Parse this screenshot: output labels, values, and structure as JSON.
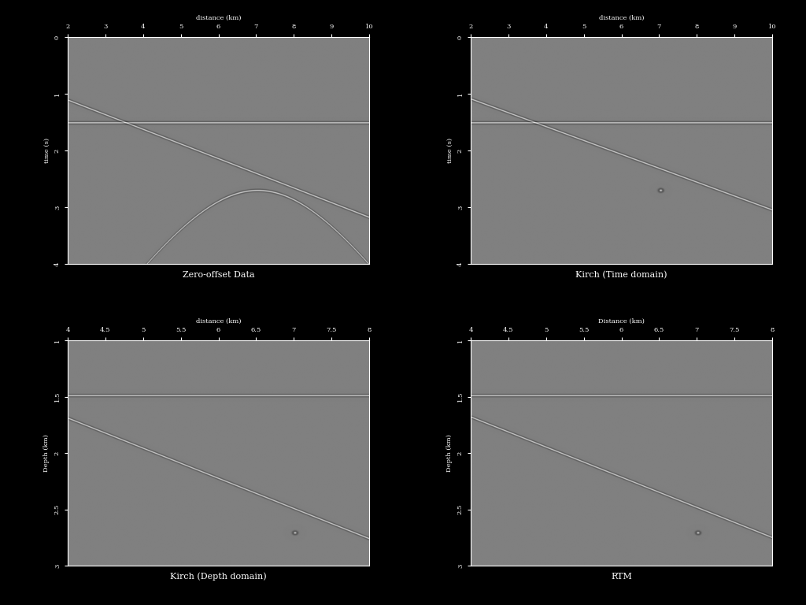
{
  "chart_data": [
    {
      "type": "image",
      "title": "Zero-offset Data",
      "xlabel": "distance (km)",
      "ylabel": "time (s)",
      "xlim": [
        2,
        10
      ],
      "xticks": [
        2,
        3,
        4,
        5,
        6,
        7,
        8,
        9,
        10
      ],
      "ylim": [
        4,
        0
      ],
      "yticks": [
        0,
        1,
        2,
        3,
        4
      ],
      "events": [
        {
          "type": "line",
          "x": [
            2,
            10
          ],
          "y": [
            1.52,
            1.52
          ]
        },
        {
          "type": "line",
          "x": [
            2,
            10
          ],
          "y": [
            1.12,
            3.18
          ]
        },
        {
          "type": "hyperbola",
          "x0": 7.05,
          "t0": 2.71,
          "velocity": 2.0
        }
      ]
    },
    {
      "type": "image",
      "title": "Kirch (Time domain)",
      "xlabel": "distance (km)",
      "ylabel": "time (s)",
      "xlim": [
        2,
        10
      ],
      "xticks": [
        2,
        3,
        4,
        5,
        6,
        7,
        8,
        9,
        10
      ],
      "ylim": [
        4,
        0
      ],
      "yticks": [
        0,
        1,
        2,
        3,
        4
      ],
      "events": [
        {
          "type": "line",
          "x": [
            2,
            10
          ],
          "y": [
            1.52,
            1.52
          ]
        },
        {
          "type": "line",
          "x": [
            2,
            10
          ],
          "y": [
            1.1,
            3.05
          ]
        },
        {
          "type": "point",
          "x": 7.05,
          "y": 2.71
        }
      ]
    },
    {
      "type": "image",
      "title": "Kirch (Depth domain)",
      "xlabel": "distance (km)",
      "ylabel": "Depth (km)",
      "xlim": [
        4,
        8
      ],
      "xticks": [
        4,
        4.5,
        5,
        5.5,
        6,
        6.5,
        7,
        7.5,
        8
      ],
      "ylim": [
        3,
        1
      ],
      "yticks": [
        1,
        1.5,
        2,
        2.5,
        3
      ],
      "events": [
        {
          "type": "line",
          "x": [
            4,
            8
          ],
          "y": [
            1.49,
            1.49
          ]
        },
        {
          "type": "line",
          "x": [
            4,
            8
          ],
          "y": [
            1.69,
            2.76
          ]
        },
        {
          "type": "point",
          "x": 7.02,
          "y": 2.71
        }
      ]
    },
    {
      "type": "image",
      "title": "RTM",
      "xlabel": "Distance (km)",
      "ylabel": "Depth (km)",
      "xlim": [
        4,
        8
      ],
      "xticks": [
        4,
        4.5,
        5,
        5.5,
        6,
        6.5,
        7,
        7.5,
        8
      ],
      "ylim": [
        3,
        1
      ],
      "yticks": [
        1,
        1.5,
        2,
        2.5,
        3
      ],
      "events": [
        {
          "type": "line",
          "x": [
            4,
            8
          ],
          "y": [
            1.49,
            1.49
          ]
        },
        {
          "type": "line",
          "x": [
            4,
            8
          ],
          "y": [
            1.68,
            2.75
          ]
        },
        {
          "type": "point",
          "x": 7.02,
          "y": 2.71
        }
      ]
    }
  ]
}
